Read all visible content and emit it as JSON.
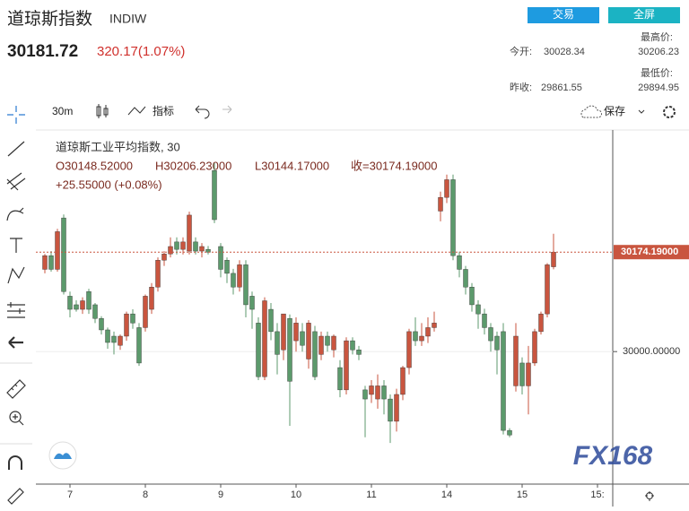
{
  "header": {
    "title": "道琼斯指数",
    "code": "INDIW",
    "price": "30181.72",
    "change": "320.17(1.07%)",
    "buttons": [
      "交易",
      "全屏"
    ],
    "open_label": "今开:",
    "open": "30028.34",
    "high_label": "最高价:",
    "high": "30206.23",
    "low_label": "最低价:",
    "low": "29894.95",
    "prev_label": "昨收:",
    "prev": "29861.55"
  },
  "toolbar": {
    "interval": "30m",
    "indicators": "指标",
    "save": "保存"
  },
  "watermark": "FX168",
  "chart_data": {
    "type": "candlestick",
    "legend": {
      "name": "道琼斯工业平均指数, 30",
      "o": "O30148.52000",
      "h": "H30206.23000",
      "l": "L30144.17000",
      "c": "收=30174.19000",
      "change": "+25.55000 (+0.08%)"
    },
    "up_color": "#c9553f",
    "down_color": "#5c9a6c",
    "ylim": [
      29768,
      30388
    ],
    "yticks": [
      {
        "value": 30000,
        "label": "30000.00000"
      }
    ],
    "last_price": {
      "value": 30174.19,
      "label": "30174.19000"
    },
    "categories": [
      null,
      null,
      null,
      null,
      "7",
      null,
      null,
      null,
      null,
      null,
      null,
      null,
      null,
      null,
      null,
      null,
      "8",
      null,
      null,
      null,
      null,
      null,
      null,
      null,
      null,
      null,
      null,
      null,
      "9",
      null,
      null,
      null,
      null,
      null,
      null,
      null,
      null,
      null,
      null,
      null,
      "10",
      null,
      null,
      null,
      null,
      null,
      null,
      null,
      null,
      null,
      null,
      null,
      "11",
      null,
      null,
      null,
      null,
      null,
      null,
      null,
      null,
      null,
      null,
      null,
      "14",
      null,
      null,
      null,
      null,
      null,
      null,
      null,
      null,
      null,
      null,
      null,
      "15",
      null,
      null,
      null,
      null,
      null,
      null,
      null,
      null,
      null,
      null,
      null,
      "15:"
    ],
    "open": [
      30144,
      30168,
      30144,
      30234,
      30097,
      30082,
      30074,
      30105,
      30082,
      30058,
      30038,
      30027,
      30011,
      30027,
      30066,
      30042,
      30042,
      30074,
      30113,
      30160,
      30171,
      30192,
      30179,
      30176,
      30192,
      30176,
      30179,
      30317,
      30184,
      30160,
      30137,
      30113,
      30152,
      30097,
      30050,
      29956,
      30074,
      30035,
      30003,
      30058,
      30019,
      30035,
      29987,
      30035,
      29995,
      30027,
      30003,
      29972,
      29933,
      30019,
      30003,
      29933,
      29925,
      29917,
      29940,
      29917,
      29878,
      29925,
      29972,
      30035,
      30019,
      30027,
      30042,
      30246,
      30270,
      30301,
      30168,
      30144,
      30113,
      30082,
      30066,
      30042,
      30027,
      30035,
      29862,
      29940,
      29980,
      29940,
      29980,
      30035,
      30066,
      30148.52,
      null,
      null,
      null,
      null,
      null,
      null,
      null
    ],
    "high": [
      30171,
      30176,
      30215,
      30240,
      30105,
      30090,
      30095,
      30110,
      30085,
      30062,
      30042,
      30035,
      30030,
      30070,
      30074,
      30050,
      30100,
      30120,
      30165,
      30176,
      30200,
      30200,
      30200,
      30245,
      30200,
      30190,
      30185,
      30330,
      30190,
      30165,
      30145,
      30160,
      30160,
      30105,
      30060,
      30095,
      30085,
      30050,
      30060,
      30065,
      30060,
      30050,
      30055,
      30045,
      30035,
      30035,
      30030,
      29985,
      30025,
      30025,
      30010,
      29940,
      29950,
      29960,
      29950,
      29925,
      29935,
      29975,
      30040,
      30060,
      30050,
      30060,
      30070,
      30280,
      30310,
      30310,
      30175,
      30150,
      30120,
      30090,
      30075,
      30050,
      30035,
      30050,
      29866,
      30050,
      29990,
      30010,
      30040,
      30070,
      30155,
      30206.23,
      null,
      null,
      null,
      null,
      null,
      null,
      null
    ],
    "low": [
      30137,
      30140,
      30140,
      30100,
      30060,
      30070,
      30066,
      30066,
      30050,
      30030,
      30005,
      29995,
      30003,
      30019,
      30040,
      29975,
      30035,
      30066,
      30105,
      30150,
      30165,
      30170,
      30170,
      30170,
      30170,
      30165,
      30170,
      30225,
      30130,
      30120,
      30100,
      30105,
      30060,
      30040,
      29950,
      29950,
      30020,
      29960,
      29985,
      29870,
      30000,
      30000,
      29970,
      29950,
      29985,
      30000,
      29990,
      29920,
      29925,
      29995,
      29985,
      29850,
      29910,
      29900,
      29890,
      29840,
      29860,
      29915,
      29960,
      30010,
      30010,
      30015,
      30035,
      30228,
      30260,
      30160,
      30130,
      30100,
      30070,
      30040,
      30030,
      30000,
      29960,
      29855,
      29850,
      29930,
      29925,
      29890,
      29975,
      30030,
      30060,
      30144.17,
      null,
      null,
      null,
      null,
      null,
      null,
      null
    ],
    "close": [
      30168,
      30144,
      30210,
      30105,
      30074,
      30074,
      30089,
      30074,
      30058,
      30038,
      30016,
      30016,
      30027,
      30066,
      30050,
      29980,
      30097,
      30113,
      30160,
      30171,
      30184,
      30179,
      30192,
      30239,
      30176,
      30184,
      30174,
      30231,
      30144,
      30137,
      30113,
      30152,
      30082,
      30074,
      29956,
      30089,
      30035,
      29995,
      30066,
      29948,
      30050,
      30011,
      30050,
      29956,
      30027,
      30011,
      30027,
      29933,
      30019,
      30003,
      29995,
      29917,
      29940,
      29940,
      29917,
      29878,
      29925,
      29972,
      30035,
      30019,
      30027,
      30042,
      30050,
      30270,
      30301,
      30168,
      30144,
      30113,
      30082,
      30066,
      30042,
      30019,
      30003,
      29862,
      29854,
      30027,
      29940,
      29980,
      30035,
      30066,
      30152,
      30174.19,
      null,
      null,
      null,
      null,
      null,
      null,
      null
    ]
  }
}
